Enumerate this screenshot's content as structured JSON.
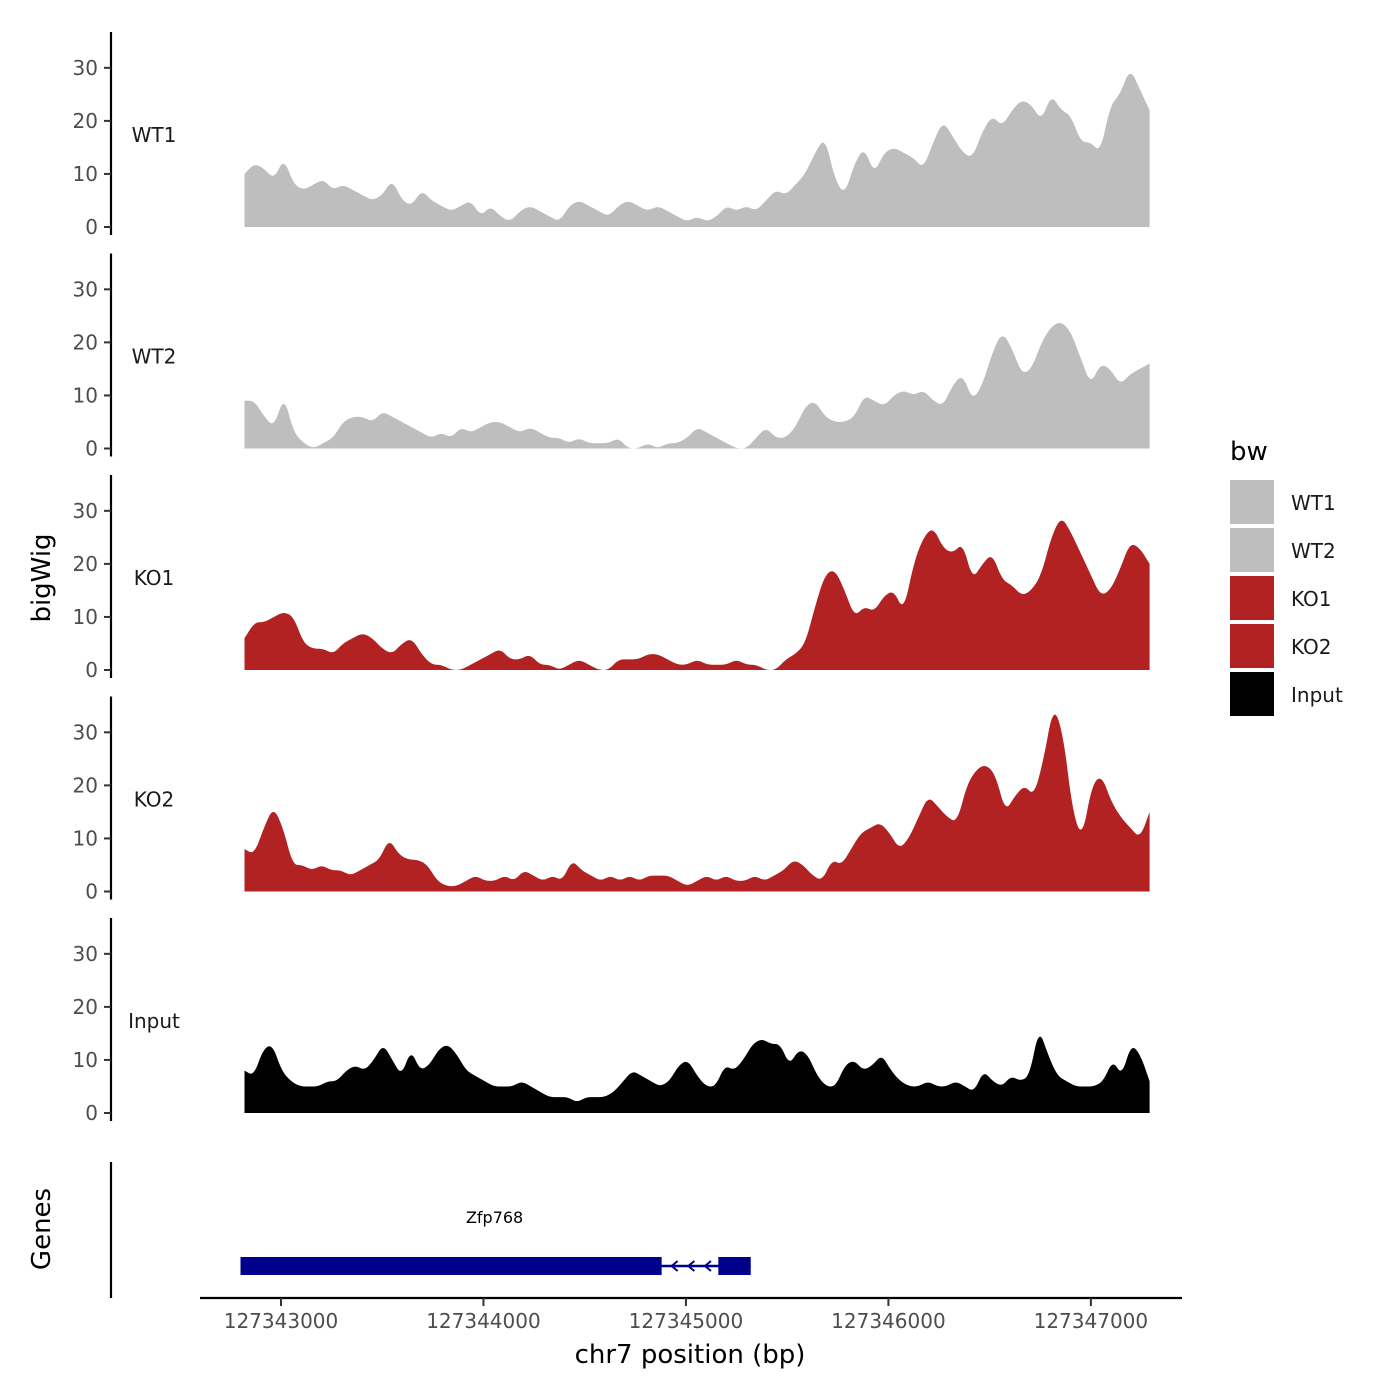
{
  "chart_data": {
    "type": "area",
    "xlabel": "chr7 position (bp)",
    "ylabel": "bigWig",
    "genes_panel_label": "Genes",
    "xlim": [
      127342600,
      127347450
    ],
    "x_ticks": [
      127343000,
      127344000,
      127345000,
      127346000,
      127347000
    ],
    "x_tick_labels": [
      "127343000",
      "127344000",
      "127345000",
      "127346000",
      "127347000"
    ],
    "ylim": [
      0,
      36
    ],
    "y_ticks": [
      0,
      10,
      20,
      30
    ],
    "y_tick_labels": [
      "0",
      "10",
      "20",
      "30"
    ],
    "x_start": 127342820,
    "x_end": 127347290,
    "series": [
      {
        "name": "WT1",
        "label": "WT1",
        "color": "#bebebe",
        "values": [
          10,
          12,
          11,
          9,
          13,
          8,
          7,
          8,
          9,
          7,
          8,
          7,
          6,
          5,
          6,
          9,
          5,
          4,
          7,
          5,
          4,
          3,
          4,
          5,
          2,
          4,
          2,
          1,
          3,
          4,
          3,
          2,
          1,
          4,
          5,
          4,
          3,
          2,
          4,
          5,
          4,
          3,
          4,
          3,
          2,
          1,
          2,
          1,
          2,
          4,
          3,
          4,
          3,
          5,
          7,
          6,
          8,
          10,
          14,
          17,
          9,
          6,
          12,
          15,
          10,
          14,
          15,
          14,
          13,
          11,
          16,
          20,
          17,
          14,
          13,
          18,
          21,
          19,
          22,
          24,
          23,
          20,
          25,
          22,
          21,
          16,
          16,
          14,
          23,
          25,
          30,
          26,
          22
        ]
      },
      {
        "name": "WT2",
        "label": "WT2",
        "color": "#bebebe",
        "values": [
          9,
          9,
          6,
          4,
          10,
          3,
          1,
          0,
          1,
          2,
          5,
          6,
          6,
          5,
          7,
          6,
          5,
          4,
          3,
          2,
          3,
          2,
          4,
          3,
          4,
          5,
          5,
          4,
          3,
          4,
          3,
          2,
          2,
          1,
          2,
          1,
          1,
          1,
          2,
          0,
          0,
          1,
          0,
          1,
          1,
          2,
          4,
          3,
          2,
          1,
          0,
          0,
          2,
          4,
          2,
          2,
          4,
          8,
          9,
          6,
          5,
          5,
          6,
          10,
          9,
          8,
          10,
          11,
          10,
          11,
          9,
          8,
          12,
          14,
          9,
          12,
          18,
          22,
          19,
          14,
          15,
          20,
          23,
          24,
          22,
          17,
          12,
          16,
          15,
          12,
          14,
          15,
          16
        ]
      },
      {
        "name": "KO1",
        "label": "KO1",
        "color": "#b22222",
        "values": [
          6,
          9,
          9,
          10,
          11,
          10,
          5,
          4,
          4,
          3,
          5,
          6,
          7,
          6,
          4,
          3,
          5,
          6,
          3,
          1,
          1,
          0,
          0,
          1,
          2,
          3,
          4,
          2,
          2,
          3,
          1,
          1,
          0,
          1,
          2,
          1,
          0,
          0,
          2,
          2,
          2,
          3,
          3,
          2,
          1,
          1,
          2,
          1,
          1,
          1,
          2,
          1,
          1,
          0,
          0,
          2,
          3,
          5,
          12,
          18,
          19,
          15,
          10,
          12,
          11,
          14,
          15,
          11,
          20,
          25,
          27,
          23,
          22,
          24,
          17,
          20,
          22,
          17,
          16,
          14,
          15,
          18,
          25,
          29,
          26,
          22,
          18,
          14,
          15,
          19,
          24,
          23,
          20
        ]
      },
      {
        "name": "KO2",
        "label": "KO2",
        "color": "#b22222",
        "values": [
          8,
          7,
          12,
          16,
          12,
          5,
          5,
          4,
          5,
          4,
          4,
          3,
          4,
          5,
          6,
          10,
          7,
          6,
          6,
          5,
          2,
          1,
          1,
          2,
          3,
          2,
          2,
          3,
          2,
          4,
          3,
          2,
          3,
          2,
          6,
          4,
          3,
          2,
          3,
          2,
          3,
          2,
          3,
          3,
          3,
          2,
          1,
          2,
          3,
          2,
          3,
          2,
          2,
          3,
          2,
          3,
          4,
          6,
          5,
          3,
          2,
          6,
          5,
          8,
          11,
          12,
          13,
          11,
          8,
          10,
          14,
          18,
          16,
          14,
          13,
          20,
          23,
          24,
          22,
          15,
          18,
          20,
          18,
          25,
          35,
          30,
          15,
          10,
          20,
          22,
          17,
          14,
          12,
          10,
          15
        ]
      },
      {
        "name": "Input",
        "label": "Input",
        "color": "#000000",
        "values": [
          8,
          7,
          12,
          13,
          8,
          6,
          5,
          5,
          5,
          6,
          6,
          8,
          9,
          8,
          10,
          13,
          10,
          7,
          12,
          8,
          9,
          12,
          13,
          11,
          8,
          7,
          6,
          5,
          5,
          5,
          6,
          5,
          4,
          3,
          3,
          3,
          2,
          3,
          3,
          3,
          4,
          6,
          8,
          7,
          6,
          5,
          6,
          9,
          10,
          7,
          5,
          5,
          9,
          8,
          10,
          13,
          14,
          13,
          13,
          9,
          12,
          11,
          7,
          5,
          5,
          9,
          10,
          8,
          9,
          11,
          8,
          6,
          5,
          5,
          6,
          5,
          5,
          6,
          5,
          4,
          8,
          6,
          5,
          7,
          6,
          7,
          16,
          11,
          7,
          6,
          5,
          5,
          5,
          6,
          10,
          7,
          13,
          11,
          6
        ]
      }
    ],
    "genes": [
      {
        "name": "Zfp768",
        "label": "Zfp768",
        "strand": "-",
        "color": "#00008b",
        "start": 127342800,
        "end": 127345320,
        "exons": [
          [
            127342800,
            127344880
          ],
          [
            127345160,
            127345320
          ]
        ]
      }
    ],
    "legend_title": "bw",
    "legend_position": "right",
    "legend": [
      {
        "label": "WT1",
        "color": "#bebebe"
      },
      {
        "label": "WT2",
        "color": "#bebebe"
      },
      {
        "label": "KO1",
        "color": "#b22222"
      },
      {
        "label": "KO2",
        "color": "#b22222"
      },
      {
        "label": "Input",
        "color": "#000000"
      }
    ],
    "grid": false
  }
}
